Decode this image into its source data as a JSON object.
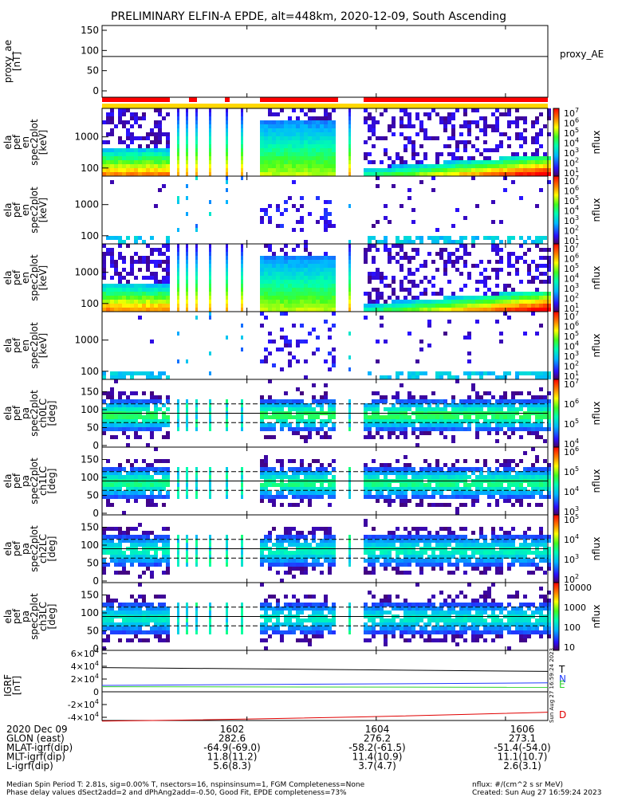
{
  "title": "PRELIMINARY ELFIN-A EPDE, alt=448km, 2020-12-09, South Ascending",
  "time_ticks": [
    "1602",
    "1604",
    "1606"
  ],
  "panels": [
    {
      "ylabel_lines": [
        "proxy_ae",
        "[nT]"
      ],
      "right_label": "proxy_AE",
      "yticks": [
        "150",
        "100",
        "50",
        "0"
      ]
    },
    {
      "ylabel_lines": [
        "ela",
        "pef",
        "en",
        "spec2plot",
        "[keV]"
      ],
      "yticks": [
        "1000",
        "100"
      ],
      "zlabel": "nflux",
      "zticks": [
        "10^7",
        "10^6",
        "10^5",
        "10^4",
        "10^3",
        "10^2",
        "10^1"
      ]
    },
    {
      "ylabel_lines": [
        "ela",
        "pef",
        "en",
        "spec2plot",
        "[keV]"
      ],
      "yticks": [
        "1000",
        "100"
      ],
      "zlabel": "nflux",
      "zticks": [
        "10^7",
        "10^6",
        "10^5",
        "10^4",
        "10^3",
        "10^2",
        "10^1"
      ]
    },
    {
      "ylabel_lines": [
        "ela",
        "pef",
        "en",
        "spec2plot",
        "[keV]"
      ],
      "yticks": [
        "1000",
        "100"
      ],
      "zlabel": "nflux",
      "zticks": [
        "10^7",
        "10^6",
        "10^5",
        "10^4",
        "10^3",
        "10^2",
        "10^1"
      ]
    },
    {
      "ylabel_lines": [
        "ela",
        "pef",
        "en",
        "spec2plot",
        "[keV]"
      ],
      "yticks": [
        "1000",
        "100"
      ],
      "zlabel": "nflux",
      "zticks": [
        "10^7",
        "10^6",
        "10^5",
        "10^4",
        "10^3",
        "10^2",
        "10^1"
      ]
    },
    {
      "ylabel_lines": [
        "ela",
        "pef",
        "pa",
        "spec2plot",
        "ch0LC",
        "[deg]"
      ],
      "yticks": [
        "150",
        "100",
        "50",
        "0"
      ],
      "zlabel": "nflux",
      "zticks": [
        "10^7",
        "10^6",
        "10^5",
        "10^4"
      ]
    },
    {
      "ylabel_lines": [
        "ela",
        "pef",
        "pa",
        "spec2plot",
        "ch1LC",
        "[deg]"
      ],
      "yticks": [
        "150",
        "100",
        "50",
        "0"
      ],
      "zlabel": "nflux",
      "zticks": [
        "10^6",
        "10^5",
        "10^4",
        "10^3"
      ]
    },
    {
      "ylabel_lines": [
        "ela",
        "pef",
        "pa",
        "spec2plot",
        "ch2LC",
        "[deg]"
      ],
      "yticks": [
        "150",
        "100",
        "50",
        "0"
      ],
      "zlabel": "nflux",
      "zticks": [
        "10^5",
        "10^4",
        "10^3",
        "10^2"
      ]
    },
    {
      "ylabel_lines": [
        "ela",
        "pef",
        "pa",
        "spec2plot",
        "ch3LC",
        "[deg]"
      ],
      "yticks": [
        "150",
        "100",
        "50",
        "0"
      ],
      "zlabel": "nflux",
      "zticks": [
        "10000",
        "1000",
        "100",
        "10"
      ]
    },
    {
      "ylabel_lines": [
        "IGRF",
        "[nT]"
      ],
      "yticks": [
        "6x10^4",
        "4x10^4",
        "2x10^4",
        "0",
        "-2x10^4",
        "-4x10^4"
      ],
      "components": [
        "T",
        "N",
        "E",
        "D"
      ]
    }
  ],
  "footer": {
    "rows": [
      {
        "label": "2020 Dec 09",
        "values": [
          "1602",
          "1604",
          "1606"
        ]
      },
      {
        "label": "GLON (east)",
        "values": [
          "282.6",
          "276.2",
          "273.1"
        ]
      },
      {
        "label": "MLAT-igrf(dip)",
        "values": [
          "-64.9(-69.0)",
          "-58.2(-61.5)",
          "-51.4(-54.0)"
        ]
      },
      {
        "label": "MLT-igrf(dip)",
        "values": [
          "11.8(11.2)",
          "11.4(10.9)",
          "11.1(10.7)"
        ]
      },
      {
        "label": "L-igrf(dip)",
        "values": [
          "5.6(8.3)",
          "3.7(4.7)",
          "2.6(3.1)"
        ]
      }
    ],
    "note1": "Median Spin Period T: 2.81s, sig=0.00% T, nsectors=16, nspinsinsum=1, FGM Completeness=None",
    "note2": "Phase delay values dSect2add=2 and dPhAng2add=-0.50, Good Fit, EPDE completeness=73%",
    "units": "nflux: #/(cm^2 s sr MeV)",
    "created": "Created: Sun Aug 27 16:59:24 2023",
    "side_stamp": "Sun Aug 27 16:59:24 2023"
  },
  "colors": {
    "bar_red": "#ff0000",
    "bar_yellow": "#ffd700",
    "line_T": "#000000",
    "line_N": "#1f3bff",
    "line_E": "#2bd12b",
    "line_D": "#e00000"
  },
  "chart_data": {
    "type": "heatmap",
    "title": "PRELIMINARY ELFIN-A EPDE, alt=448km, 2020-12-09, South Ascending",
    "xlabel": "",
    "x_ticks": [
      "1602",
      "1604",
      "1606"
    ],
    "panels": [
      {
        "id": "proxy_ae",
        "type": "line",
        "ylim": [
          0,
          150
        ],
        "series": [
          {
            "name": "proxy_AE",
            "x": [
              "start",
              "1602",
              "1604",
              "1606",
              "end"
            ],
            "values": [
              85,
              85,
              85,
              85,
              85
            ]
          }
        ]
      },
      {
        "id": "en_1",
        "type": "heatmap",
        "yscale": "log",
        "ylim": [
          60,
          6000
        ],
        "zscale": "log",
        "zlim": [
          10.0,
          10000000.0
        ]
      },
      {
        "id": "en_2",
        "type": "heatmap",
        "yscale": "log",
        "ylim": [
          60,
          6000
        ],
        "zscale": "log",
        "zlim": [
          10.0,
          10000000.0
        ]
      },
      {
        "id": "en_3",
        "type": "heatmap",
        "yscale": "log",
        "ylim": [
          60,
          6000
        ],
        "zscale": "log",
        "zlim": [
          10.0,
          10000000.0
        ]
      },
      {
        "id": "en_4",
        "type": "heatmap",
        "yscale": "log",
        "ylim": [
          60,
          6000
        ],
        "zscale": "log",
        "zlim": [
          10.0,
          10000000.0
        ]
      },
      {
        "id": "ch0LC",
        "type": "heatmap",
        "ylim": [
          0,
          180
        ],
        "zscale": "log",
        "zlim": [
          3000,
          10000000.0
        ]
      },
      {
        "id": "ch1LC",
        "type": "heatmap",
        "ylim": [
          0,
          180
        ],
        "zscale": "log",
        "zlim": [
          500,
          1000000.0
        ]
      },
      {
        "id": "ch2LC",
        "type": "heatmap",
        "ylim": [
          0,
          180
        ],
        "zscale": "log",
        "zlim": [
          80,
          100000.0
        ]
      },
      {
        "id": "ch3LC",
        "type": "heatmap",
        "ylim": [
          0,
          180
        ],
        "zscale": "log",
        "zlim": [
          10,
          10000
        ]
      },
      {
        "id": "IGRF",
        "type": "line",
        "ylim": [
          -45000,
          65000
        ],
        "series": [
          {
            "name": "T",
            "values_start_end": [
              38000,
              32000
            ]
          },
          {
            "name": "N",
            "values_start_end": [
              10000,
              14000
            ]
          },
          {
            "name": "E",
            "values_start_end": [
              8000,
              7000
            ]
          },
          {
            "name": "D",
            "values_start_end": [
              -46000,
              -32000
            ]
          }
        ]
      }
    ]
  }
}
